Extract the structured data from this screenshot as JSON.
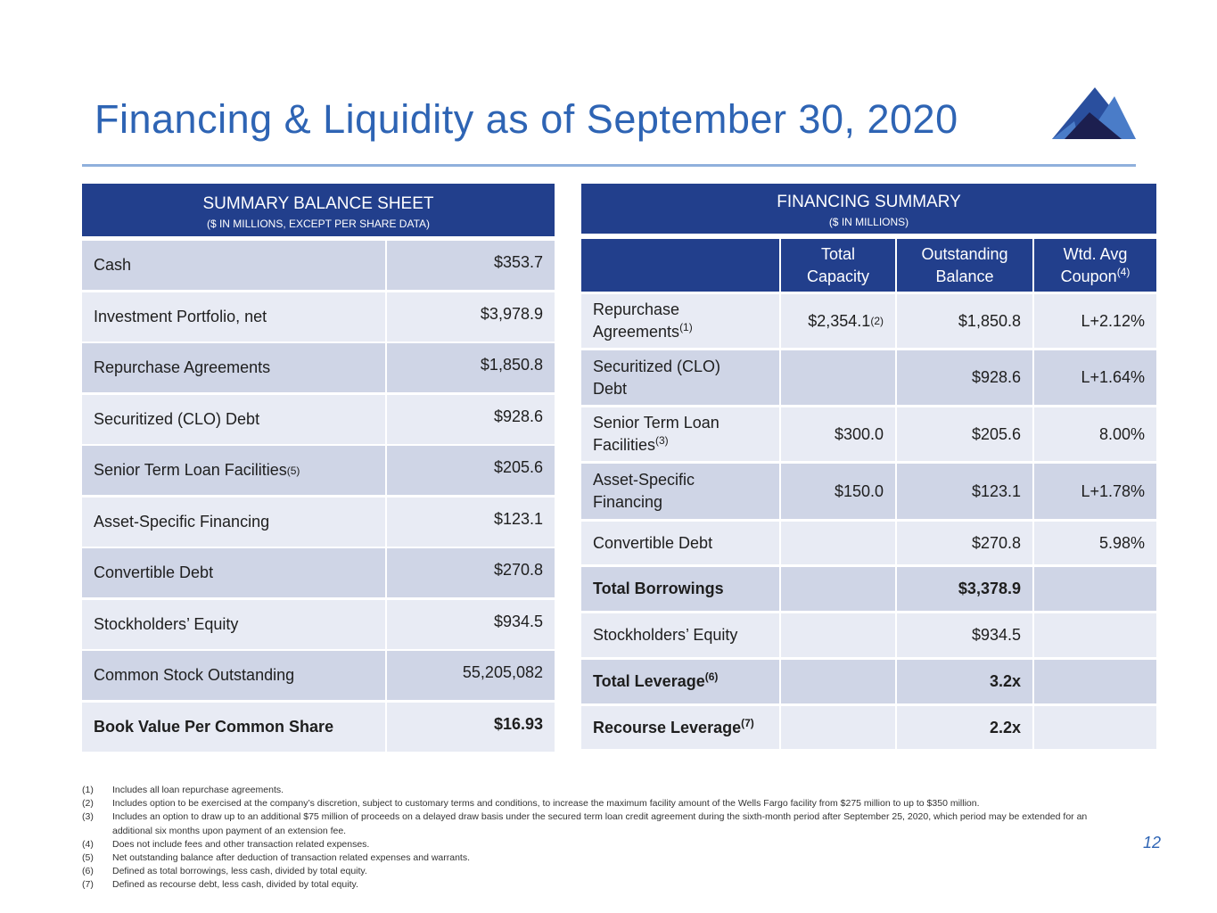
{
  "title": "Financing & Liquidity as of September 30, 2020",
  "page_number": "12",
  "colors": {
    "header": "#223f8c",
    "row_dark": "#cfd5e6",
    "row_light": "#e8ebf4",
    "title": "#2e64b4"
  },
  "balance_sheet": {
    "title": "SUMMARY BALANCE SHEET",
    "subtitle": "($ IN MILLIONS, EXCEPT PER SHARE DATA)",
    "rows": [
      {
        "label": "Cash",
        "sup": "",
        "value": "$353.7"
      },
      {
        "label": "Investment Portfolio, net",
        "sup": "",
        "value": "$3,978.9"
      },
      {
        "label": "Repurchase Agreements",
        "sup": "",
        "value": "$1,850.8"
      },
      {
        "label": "Securitized (CLO) Debt",
        "sup": "",
        "value": "$928.6"
      },
      {
        "label": "Senior Term Loan Facilities",
        "sup": "(5)",
        "value": "$205.6"
      },
      {
        "label": "Asset-Specific Financing",
        "sup": "",
        "value": "$123.1"
      },
      {
        "label": "Convertible Debt",
        "sup": "",
        "value": "$270.8"
      },
      {
        "label": "Stockholders’ Equity",
        "sup": "",
        "value": "$934.5"
      },
      {
        "label": "Common Stock Outstanding",
        "sup": "",
        "value": "55,205,082"
      },
      {
        "label": "Book Value Per Common Share",
        "sup": "",
        "value": "$16.93"
      }
    ]
  },
  "financing": {
    "title": "FINANCING SUMMARY",
    "subtitle": "($ IN MILLIONS)",
    "columns": [
      {
        "l1": "Total",
        "l2": "Capacity",
        "sup": ""
      },
      {
        "l1": "Outstanding",
        "l2": "Balance",
        "sup": ""
      },
      {
        "l1": "Wtd. Avg",
        "l2": "Coupon",
        "sup": "(4)"
      }
    ],
    "rows": [
      {
        "l1": "Repurchase",
        "l2": "Agreements",
        "sup": "(1)",
        "capacity": "$2,354.1",
        "cap_sup": "(2)",
        "balance": "$1,850.8",
        "coupon": "L+2.12%"
      },
      {
        "l1": "Securitized (CLO)",
        "l2": "Debt",
        "sup": "",
        "capacity": "",
        "cap_sup": "",
        "balance": "$928.6",
        "coupon": "L+1.64%"
      },
      {
        "l1": "Senior Term Loan",
        "l2": "Facilities",
        "sup": "(3)",
        "capacity": "$300.0",
        "cap_sup": "",
        "balance": "$205.6",
        "coupon": "8.00%"
      },
      {
        "l1": "Asset-Specific",
        "l2": "Financing",
        "sup": "",
        "capacity": "$150.0",
        "cap_sup": "",
        "balance": "$123.1",
        "coupon": "L+1.78%"
      },
      {
        "l1": "Convertible Debt",
        "l2": "",
        "sup": "",
        "capacity": "",
        "cap_sup": "",
        "balance": "$270.8",
        "coupon": "5.98%"
      },
      {
        "l1": "Total Borrowings",
        "l2": "",
        "sup": "",
        "capacity": "",
        "cap_sup": "",
        "balance": "$3,378.9",
        "coupon": ""
      },
      {
        "l1": "Stockholders’ Equity",
        "l2": "",
        "sup": "",
        "capacity": "",
        "cap_sup": "",
        "balance": "$934.5",
        "coupon": ""
      },
      {
        "l1": "Total Leverage",
        "l2": "",
        "sup": "(6)",
        "capacity": "",
        "cap_sup": "",
        "balance": "3.2x",
        "coupon": ""
      },
      {
        "l1": "Recourse Leverage",
        "l2": "",
        "sup": "(7)",
        "capacity": "",
        "cap_sup": "",
        "balance": "2.2x",
        "coupon": ""
      }
    ]
  },
  "footnotes": [
    {
      "n": "(1)",
      "text": "Includes all loan repurchase agreements."
    },
    {
      "n": "(2)",
      "text": "Includes option to be exercised at the company’s discretion, subject to customary terms and conditions, to increase the maximum facility amount of the Wells Fargo facility from $275 million to up to $350 million."
    },
    {
      "n": "(3)",
      "text": "Includes an option to draw up to an additional $75 million of proceeds on a delayed draw basis under the secured term loan credit agreement during the sixth-month period after September 25, 2020, which period may be extended for an additional six months upon payment of an extension fee."
    },
    {
      "n": "(4)",
      "text": "Does not include fees and other transaction related expenses."
    },
    {
      "n": "(5)",
      "text": "Net outstanding balance after deduction of transaction related expenses and warrants."
    },
    {
      "n": "(6)",
      "text": "Defined as total borrowings, less cash, divided by total equity."
    },
    {
      "n": "(7)",
      "text": "Defined as recourse debt, less cash, divided by total equity."
    }
  ]
}
